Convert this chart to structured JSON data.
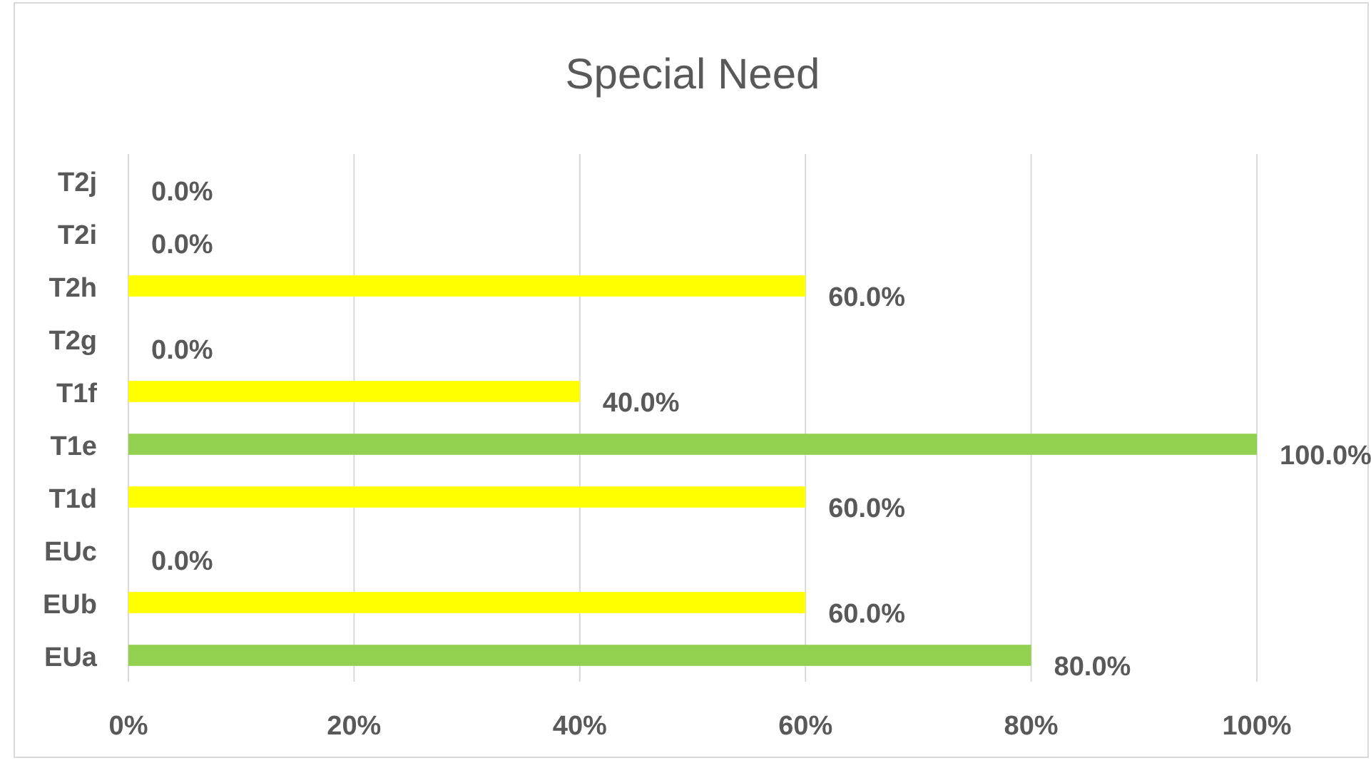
{
  "chart_data": {
    "type": "bar",
    "orientation": "horizontal",
    "title": "Special Need",
    "categories": [
      "T2j",
      "T2i",
      "T2h",
      "T2g",
      "T1f",
      "T1e",
      "T1d",
      "EUc",
      "EUb",
      "EUa"
    ],
    "values": [
      0,
      0,
      60,
      0,
      40,
      100,
      60,
      0,
      60,
      80
    ],
    "colors": [
      "#ffff00",
      "#ffff00",
      "#ffff00",
      "#ffff00",
      "#ffff00",
      "#92d050",
      "#ffff00",
      "#ffff00",
      "#ffff00",
      "#92d050"
    ],
    "value_labels": [
      "0.0%",
      "0.0%",
      "60.0%",
      "0.0%",
      "40.0%",
      "100.0%",
      "60.0%",
      "0.0%",
      "60.0%",
      "80.0%"
    ],
    "xlim": [
      0,
      100
    ],
    "xticks": [
      {
        "value": 0,
        "label": "0%"
      },
      {
        "value": 20,
        "label": "20%"
      },
      {
        "value": 40,
        "label": "40%"
      },
      {
        "value": 60,
        "label": "60%"
      },
      {
        "value": 80,
        "label": "80%"
      },
      {
        "value": 100,
        "label": "100%"
      }
    ],
    "grid": "x"
  }
}
